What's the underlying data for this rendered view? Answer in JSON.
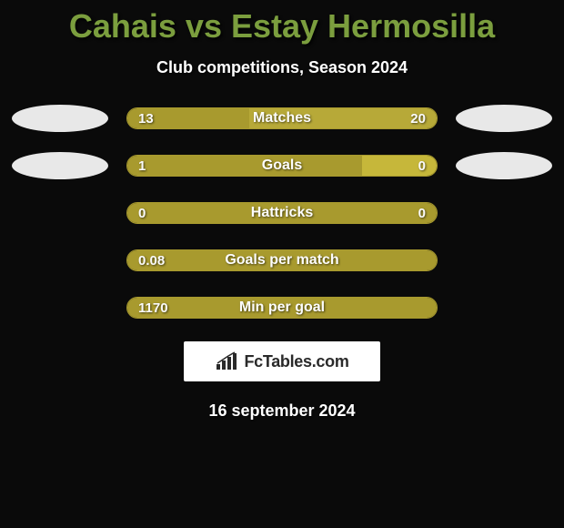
{
  "colors": {
    "background": "#0a0a0a",
    "title": "#7b9e3e",
    "subtitle": "#ffffff",
    "left_bar": "#a89a2e",
    "right_bar": "#a89a2e",
    "neutral_bar": "#a89a2e",
    "ellipse_left": "#e8e8e8",
    "ellipse_right": "#e8e8e8",
    "brand_bg": "#ffffff",
    "brand_text": "#2a2a2a",
    "bar_border": "#a89a2e"
  },
  "header": {
    "title": "Cahais vs Estay Hermosilla",
    "subtitle": "Club competitions, Season 2024"
  },
  "bar_dimensions": {
    "total_width": 342,
    "height": 24,
    "border_radius": 12
  },
  "rows": [
    {
      "label": "Matches",
      "left_val": "13",
      "right_val": "20",
      "left_pct": 39.4,
      "right_pct": 60.6,
      "left_color": "#a89a2e",
      "right_color": "#b7a938",
      "show_ellipses": true
    },
    {
      "label": "Goals",
      "left_val": "1",
      "right_val": "0",
      "left_pct": 76,
      "right_pct": 24,
      "left_color": "#a89a2e",
      "right_color": "#c6b73a",
      "show_ellipses": true
    },
    {
      "label": "Hattricks",
      "left_val": "0",
      "right_val": "0",
      "left_pct": 100,
      "right_pct": 0,
      "left_color": "#a89a2e",
      "right_color": "#a89a2e",
      "show_ellipses": false
    },
    {
      "label": "Goals per match",
      "left_val": "0.08",
      "right_val": "",
      "left_pct": 100,
      "right_pct": 0,
      "left_color": "#a89a2e",
      "right_color": "#a89a2e",
      "show_ellipses": false
    },
    {
      "label": "Min per goal",
      "left_val": "1170",
      "right_val": "",
      "left_pct": 100,
      "right_pct": 0,
      "left_color": "#a89a2e",
      "right_color": "#a89a2e",
      "show_ellipses": false
    }
  ],
  "brand": {
    "icon": "bar-chart-icon",
    "text": "FcTables.com"
  },
  "footer": {
    "date": "16 september 2024"
  }
}
